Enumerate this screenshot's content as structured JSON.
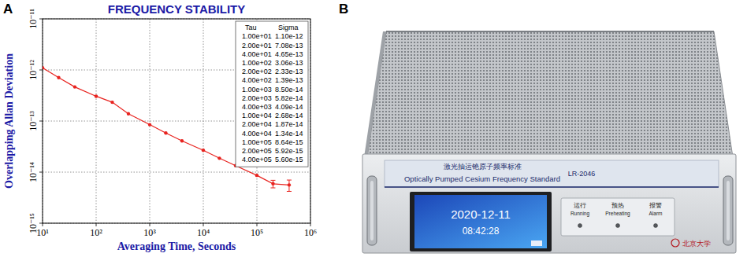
{
  "chart_data": {
    "type": "line",
    "panel_label": "A",
    "title": "FREQUENCY STABILITY",
    "x_label": "Averaging Time, Seconds",
    "y_label": "Overlapping Allan Deviation",
    "x": [
      10,
      20,
      40,
      100,
      200,
      400,
      1000,
      2000,
      4000,
      10000,
      20000,
      40000,
      100000,
      200000,
      400000
    ],
    "values": [
      1.1e-12,
      7.08e-13,
      4.65e-13,
      3.06e-13,
      2.33e-13,
      1.39e-13,
      8.5e-14,
      5.82e-14,
      4.09e-14,
      2.68e-14,
      1.87e-14,
      1.34e-14,
      8.64e-15,
      5.92e-15,
      5.6e-15
    ],
    "errors": [
      null,
      null,
      null,
      null,
      null,
      null,
      null,
      null,
      null,
      null,
      null,
      null,
      null,
      1e-15,
      1.4e-15
    ],
    "color": "#e8231f",
    "marker": "circle",
    "log": true,
    "grid": true,
    "xlim": [
      10,
      1000000
    ],
    "ylim": [
      1e-15,
      1e-11
    ],
    "xticks": [
      {
        "value": 10,
        "label": "10¹"
      },
      {
        "value": 100,
        "label": "10²"
      },
      {
        "value": 1000,
        "label": "10³"
      },
      {
        "value": 10000,
        "label": "10⁴"
      },
      {
        "value": 100000,
        "label": "10⁵"
      },
      {
        "value": 1000000,
        "label": "10⁶"
      }
    ],
    "yticks": [
      {
        "value": 1e-15,
        "label": "10⁻¹⁵"
      },
      {
        "value": 1e-14,
        "label": "10⁻¹⁴"
      },
      {
        "value": 1e-13,
        "label": "10⁻¹³"
      },
      {
        "value": 1e-12,
        "label": "10⁻¹²"
      },
      {
        "value": 1e-11,
        "label": "10⁻¹¹"
      }
    ],
    "table": {
      "columns": [
        "Tau",
        "Sigma"
      ],
      "rows": [
        [
          "1.00e+01",
          "1.10e-12"
        ],
        [
          "2.00e+01",
          "7.08e-13"
        ],
        [
          "4.00e+01",
          "4.65e-13"
        ],
        [
          "1.00e+02",
          "3.06e-13"
        ],
        [
          "2.00e+02",
          "2.33e-13"
        ],
        [
          "4.00e+02",
          "1.39e-13"
        ],
        [
          "1.00e+03",
          "8.50e-14"
        ],
        [
          "2.00e+03",
          "5.82e-14"
        ],
        [
          "4.00e+03",
          "4.09e-14"
        ],
        [
          "1.00e+04",
          "2.68e-14"
        ],
        [
          "2.00e+04",
          "1.87e-14"
        ],
        [
          "4.00e+04",
          "1.34e-14"
        ],
        [
          "1.00e+05",
          "8.64e-15"
        ],
        [
          "2.00e+05",
          "5.92e-15"
        ],
        [
          "4.00e+05",
          "5.60e-15"
        ]
      ]
    }
  },
  "device_photo": {
    "panel_label": "B",
    "title_zh": "激光抽运铯原子频率标准",
    "title_en": "Optically Pumped Cesium Frequency Standard",
    "model": "LR-2046",
    "screen": {
      "date": "2020-12-11",
      "time": "08:42:28"
    },
    "indicators": [
      {
        "zh": "运行",
        "en": "Running"
      },
      {
        "zh": "预热",
        "en": "Preheating"
      },
      {
        "zh": "报警",
        "en": "Alarm"
      }
    ],
    "logo": "北京大学"
  }
}
